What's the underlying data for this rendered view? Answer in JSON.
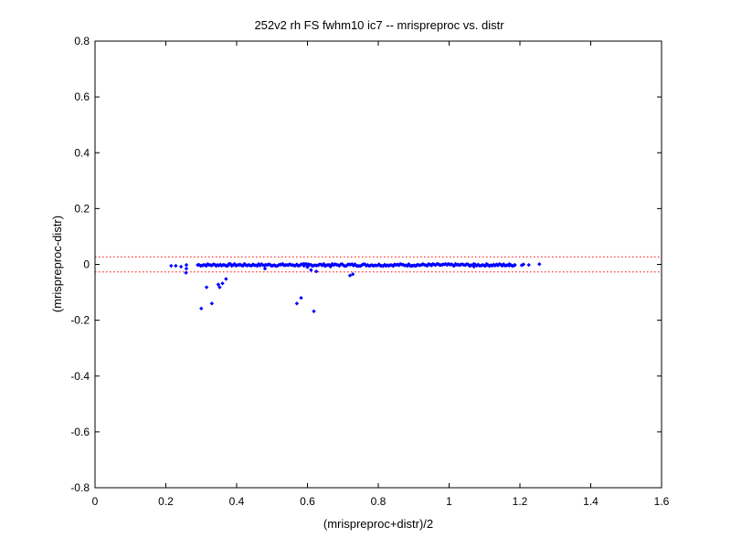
{
  "chart_data": {
    "type": "scatter",
    "title": "252v2 rh FS fwhm10 ic7 -- mrispreproc vs. distr",
    "xlabel": "(mrispreproc+distr)/2",
    "ylabel": "(mrispreproc-distr)",
    "xlim": [
      0,
      1.6
    ],
    "ylim": [
      -0.8,
      0.8
    ],
    "xticks": [
      "0",
      "0.2",
      "0.4",
      "0.6",
      "0.8",
      "1",
      "1.2",
      "1.4",
      "1.6"
    ],
    "yticks": [
      "0.8",
      "0.6",
      "0.4",
      "0.2",
      "0",
      "-0.2",
      "-0.4",
      "-0.6",
      "-0.8"
    ],
    "grid": false,
    "legend": "none",
    "reference_lines": [
      0.027,
      -0.027
    ],
    "colors": {
      "points": "#0000ff",
      "reference": "#ff0000",
      "axes": "#000000"
    },
    "dense_band": {
      "x_start": 0.29,
      "x_end": 1.19,
      "y": 0.0
    },
    "points": [
      [
        0.215,
        -0.005
      ],
      [
        0.228,
        -0.005
      ],
      [
        0.243,
        -0.008
      ],
      [
        0.258,
        -0.002
      ],
      [
        0.258,
        -0.015
      ],
      [
        0.257,
        -0.03
      ],
      [
        0.3,
        -0.158
      ],
      [
        0.315,
        -0.082
      ],
      [
        0.33,
        -0.14
      ],
      [
        0.348,
        -0.072
      ],
      [
        0.352,
        -0.082
      ],
      [
        0.36,
        -0.068
      ],
      [
        0.37,
        -0.052
      ],
      [
        0.48,
        -0.015
      ],
      [
        0.57,
        -0.14
      ],
      [
        0.582,
        -0.12
      ],
      [
        0.59,
        -0.005
      ],
      [
        0.6,
        -0.008
      ],
      [
        0.61,
        -0.02
      ],
      [
        0.618,
        -0.168
      ],
      [
        0.625,
        -0.025
      ],
      [
        0.72,
        -0.04
      ],
      [
        0.728,
        -0.035
      ],
      [
        0.6,
        -0.01
      ],
      [
        0.665,
        -0.008
      ],
      [
        0.895,
        -0.005
      ],
      [
        0.95,
        -0.004
      ],
      [
        1.06,
        -0.004
      ],
      [
        1.07,
        -0.008
      ],
      [
        1.11,
        -0.003
      ],
      [
        1.15,
        -0.005
      ],
      [
        1.17,
        -0.004
      ],
      [
        1.185,
        -0.002
      ],
      [
        1.205,
        -0.003
      ],
      [
        1.21,
        0.0
      ],
      [
        1.225,
        -0.002
      ],
      [
        1.255,
        0.001
      ]
    ]
  }
}
